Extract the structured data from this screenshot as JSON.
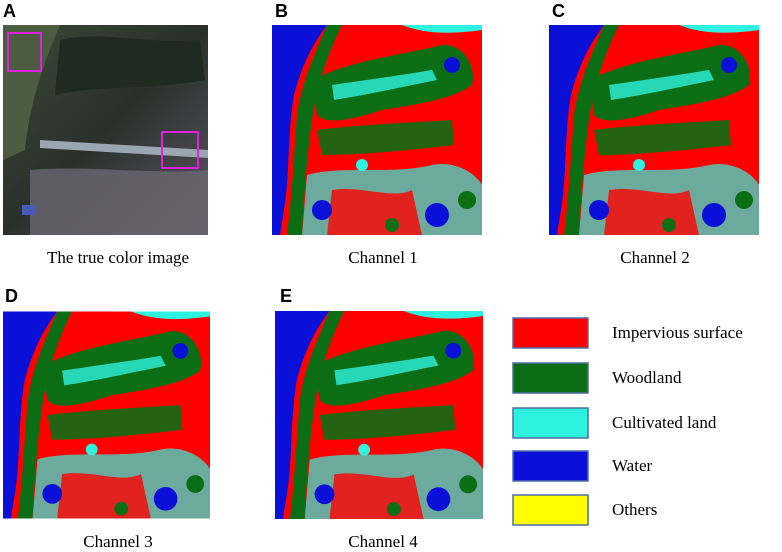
{
  "panels": [
    {
      "label": "A",
      "caption": "The true color image"
    },
    {
      "label": "B",
      "caption": "Channel 1"
    },
    {
      "label": "C",
      "caption": "Channel 2"
    },
    {
      "label": "D",
      "caption": "Channel 3"
    },
    {
      "label": "E",
      "caption": "Channel 4"
    }
  ],
  "legend": [
    {
      "label": "Impervious surface",
      "color": "#ff0000"
    },
    {
      "label": "Woodland",
      "color": "#0b6e14"
    },
    {
      "label": "Cultivated land",
      "color": "#2ef2e0"
    },
    {
      "label": "Water",
      "color": "#0a10d8"
    },
    {
      "label": "Others",
      "color": "#ffff00"
    }
  ]
}
